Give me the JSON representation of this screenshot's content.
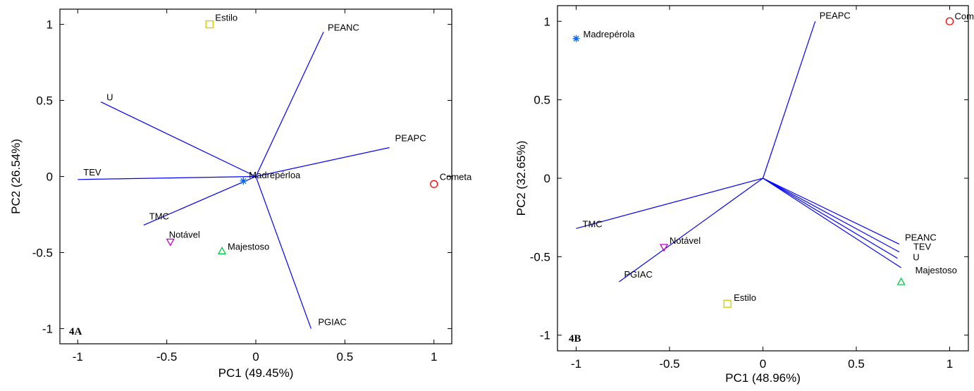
{
  "chart_data": [
    {
      "type": "scatter",
      "panel_label": "4A",
      "xlabel": "PC1 (49.45%)",
      "ylabel": "PC2 (26.54%)",
      "xlim": [
        -1.1,
        1.1
      ],
      "ylim": [
        -1.1,
        1.1
      ],
      "xticks": [
        -1,
        -0.5,
        0,
        0.5,
        1
      ],
      "yticks": [
        -1,
        -0.5,
        0,
        0.5,
        1
      ],
      "xtick_labels": [
        "-1",
        "-0.5",
        "0",
        "0.5",
        "1"
      ],
      "ytick_labels": [
        "-1",
        "-0.5",
        "0",
        "0.5",
        "1"
      ],
      "line_color": "#0000ff",
      "loadings": [
        {
          "name": "PEANC",
          "x": 0.38,
          "y": 0.95
        },
        {
          "name": "U",
          "x": -0.87,
          "y": 0.49
        },
        {
          "name": "PEAPC",
          "x": 0.75,
          "y": 0.19
        },
        {
          "name": "TEV",
          "x": -1.0,
          "y": -0.02
        },
        {
          "name": "TMC",
          "x": -0.63,
          "y": -0.32
        },
        {
          "name": "PGIAC",
          "x": 0.31,
          "y": -1.0
        }
      ],
      "scores": [
        {
          "name": "Estilo",
          "x": -0.26,
          "y": 1.0,
          "marker": "square",
          "color": "#cccc00"
        },
        {
          "name": "Madrepérloa",
          "x": -0.07,
          "y": -0.03,
          "marker": "star",
          "color": "#0066ff"
        },
        {
          "name": "Cometa",
          "x": 1.0,
          "y": -0.05,
          "marker": "circle",
          "color": "#ff0000"
        },
        {
          "name": "Notável",
          "x": -0.48,
          "y": -0.43,
          "marker": "triangle-down",
          "color": "#cc00cc"
        },
        {
          "name": "Majestoso",
          "x": -0.19,
          "y": -0.49,
          "marker": "triangle-up",
          "color": "#00cc44"
        }
      ]
    },
    {
      "type": "scatter",
      "panel_label": "4B",
      "xlabel": "PC1 (48.96%)",
      "ylabel": "PC2 (32.65%)",
      "xlim": [
        -1.1,
        1.1
      ],
      "ylim": [
        -1.1,
        1.1
      ],
      "xticks": [
        -1,
        -0.5,
        0,
        0.5,
        1
      ],
      "yticks": [
        -1,
        -0.5,
        0,
        0.5,
        1
      ],
      "xtick_labels": [
        "-1",
        "-0.5",
        "0",
        "0.5",
        "1"
      ],
      "ytick_labels": [
        "-1",
        "-0.5",
        "0",
        "0.5",
        "1"
      ],
      "line_color": "#0000ff",
      "loadings": [
        {
          "name": "PEAPC",
          "x": 0.28,
          "y": 1.0
        },
        {
          "name": "TMC",
          "x": -1.0,
          "y": -0.32
        },
        {
          "name": "PGIAC",
          "x": -0.77,
          "y": -0.66
        },
        {
          "name": "PEANC",
          "x": 0.73,
          "y": -0.42
        },
        {
          "name": "TEV",
          "x": 0.73,
          "y": -0.47
        },
        {
          "name": "U",
          "x": 0.72,
          "y": -0.51
        },
        {
          "name": "Majestoso",
          "x": 0.74,
          "y": -0.57
        }
      ],
      "scores": [
        {
          "name": "Cometa",
          "x": 1.0,
          "y": 1.0,
          "marker": "circle",
          "color": "#ff0000"
        },
        {
          "name": "Madrepérola",
          "x": -1.0,
          "y": 0.89,
          "marker": "star",
          "color": "#0066ff"
        },
        {
          "name": "Notável",
          "x": -0.53,
          "y": -0.44,
          "marker": "triangle-down",
          "color": "#cc00cc"
        },
        {
          "name": "Estilo",
          "x": -0.19,
          "y": -0.8,
          "marker": "square",
          "color": "#cccc00"
        },
        {
          "name": "",
          "x": 0.74,
          "y": -0.66,
          "marker": "triangle-up",
          "color": "#00cc44"
        }
      ]
    }
  ]
}
